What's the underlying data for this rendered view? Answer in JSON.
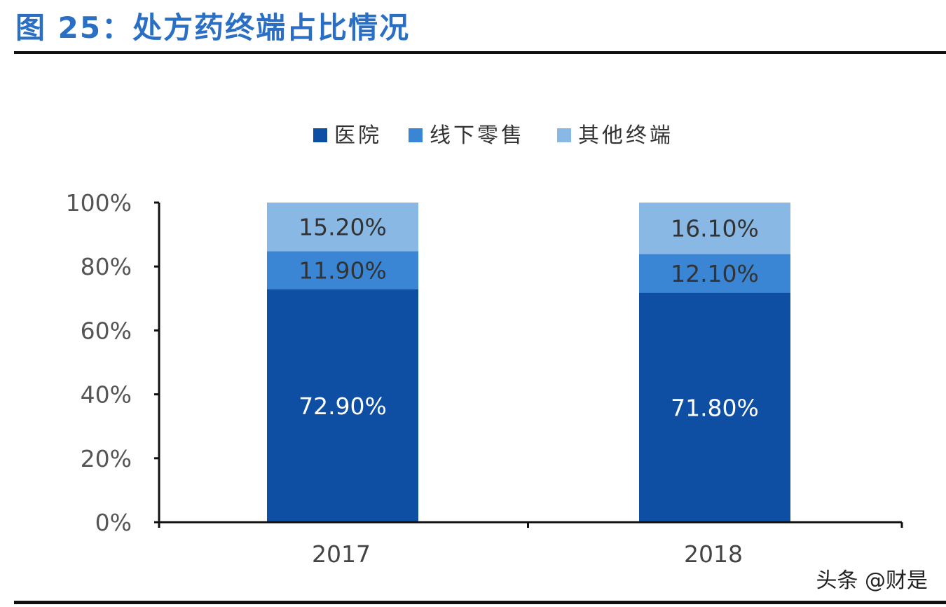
{
  "header": {
    "figure_title": "图 25：处方药终端占比情况"
  },
  "footer": {
    "watermark": "头条 @财是"
  },
  "chart_data": {
    "type": "bar",
    "stacked": true,
    "categories": [
      "2017",
      "2018"
    ],
    "series": [
      {
        "name": "医院",
        "values": [
          72.9,
          71.8
        ],
        "labels": [
          "72.90%",
          "71.80%"
        ],
        "color": "#0f4fa3",
        "label_color": "#ffffff"
      },
      {
        "name": "线下零售",
        "values": [
          11.9,
          12.1
        ],
        "labels": [
          "11.90%",
          "12.10%"
        ],
        "color": "#3a86d4",
        "label_color": "#333333"
      },
      {
        "name": "其他终端",
        "values": [
          15.2,
          16.1
        ],
        "labels": [
          "15.20%",
          "16.10%"
        ],
        "color": "#8ab8e4",
        "label_color": "#333333"
      }
    ],
    "y_ticks": [
      "0%",
      "20%",
      "40%",
      "60%",
      "80%",
      "100%"
    ],
    "ylim": [
      0,
      100
    ],
    "legend_position": "top-center",
    "grid": false
  }
}
